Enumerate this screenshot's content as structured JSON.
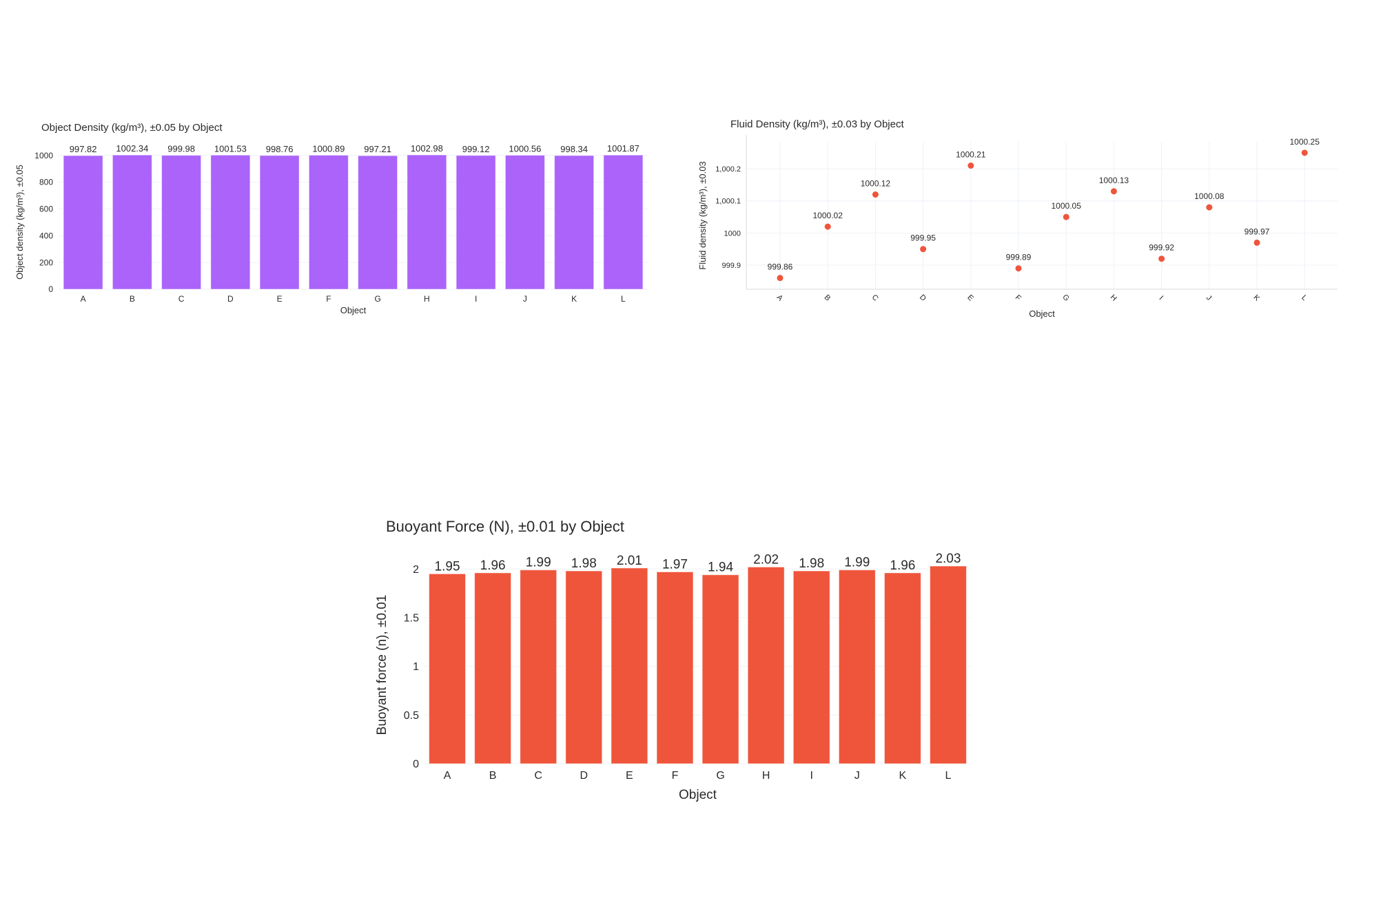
{
  "chart_data": [
    {
      "type": "bar",
      "title": "Object Density (kg/m³), ±0.05 by Object",
      "xlabel": "Object",
      "ylabel": "Object density (kg/m³), ±0.05",
      "categories": [
        "A",
        "B",
        "C",
        "D",
        "E",
        "F",
        "G",
        "H",
        "I",
        "J",
        "K",
        "L"
      ],
      "values": [
        997.82,
        1002.34,
        999.98,
        1001.53,
        998.76,
        1000.89,
        997.21,
        1002.98,
        999.12,
        1000.56,
        998.34,
        1001.87
      ],
      "data_labels": [
        "997.82",
        "1002.34",
        "999.98",
        "1001.53",
        "998.76",
        "1000.89",
        "997.21",
        "1002.98",
        "999.12",
        "1000.56",
        "998.34",
        "1001.87"
      ],
      "yticks": [
        "0",
        "200",
        "400",
        "600",
        "800",
        "1000"
      ],
      "ytick_values": [
        0,
        200,
        400,
        600,
        800,
        1000
      ],
      "ylim": [
        0,
        1003
      ],
      "grid": true,
      "color": "#ab63fa"
    },
    {
      "type": "scatter",
      "title": "Fluid Density (kg/m³), ±0.03 by Object",
      "xlabel": "Object",
      "ylabel": "Fluid density (kg/m³), ±0.03",
      "categories": [
        "A",
        "B",
        "C",
        "D",
        "E",
        "F",
        "G",
        "H",
        "I",
        "J",
        "K",
        "L"
      ],
      "values": [
        999.86,
        1000.02,
        1000.12,
        999.95,
        1000.21,
        999.89,
        1000.05,
        1000.13,
        999.92,
        1000.08,
        999.97,
        1000.25
      ],
      "data_labels": [
        "999.86",
        "1000.02",
        "1000.12",
        "999.95",
        "1000.21",
        "999.89",
        "1000.05",
        "1000.13",
        "999.92",
        "1000.08",
        "999.97",
        "1000.25"
      ],
      "yticks": [
        "999.9",
        "1000",
        "1,000.1",
        "1,000.2"
      ],
      "ytick_values": [
        999.9,
        1000,
        1000.1,
        1000.2
      ],
      "ylim": [
        999.825,
        1000.284
      ],
      "xtick_rotation": 45,
      "grid": true,
      "color": "#ef553b"
    },
    {
      "type": "bar",
      "title": "Buoyant Force (N), ±0.01 by Object",
      "xlabel": "Object",
      "ylabel": "Buoyant force (n), ±0.01",
      "categories": [
        "A",
        "B",
        "C",
        "D",
        "E",
        "F",
        "G",
        "H",
        "I",
        "J",
        "K",
        "L"
      ],
      "values": [
        1.95,
        1.96,
        1.99,
        1.98,
        2.01,
        1.97,
        1.94,
        2.02,
        1.98,
        1.99,
        1.96,
        2.03
      ],
      "data_labels": [
        "1.95",
        "1.96",
        "1.99",
        "1.98",
        "2.01",
        "1.97",
        "1.94",
        "2.02",
        "1.98",
        "1.99",
        "1.96",
        "2.03"
      ],
      "yticks": [
        "0",
        "0.5",
        "1",
        "1.5",
        "2"
      ],
      "ytick_values": [
        0,
        0.5,
        1,
        1.5,
        2
      ],
      "ylim": [
        0,
        2.03
      ],
      "grid": true,
      "color": "#ef553b"
    }
  ]
}
